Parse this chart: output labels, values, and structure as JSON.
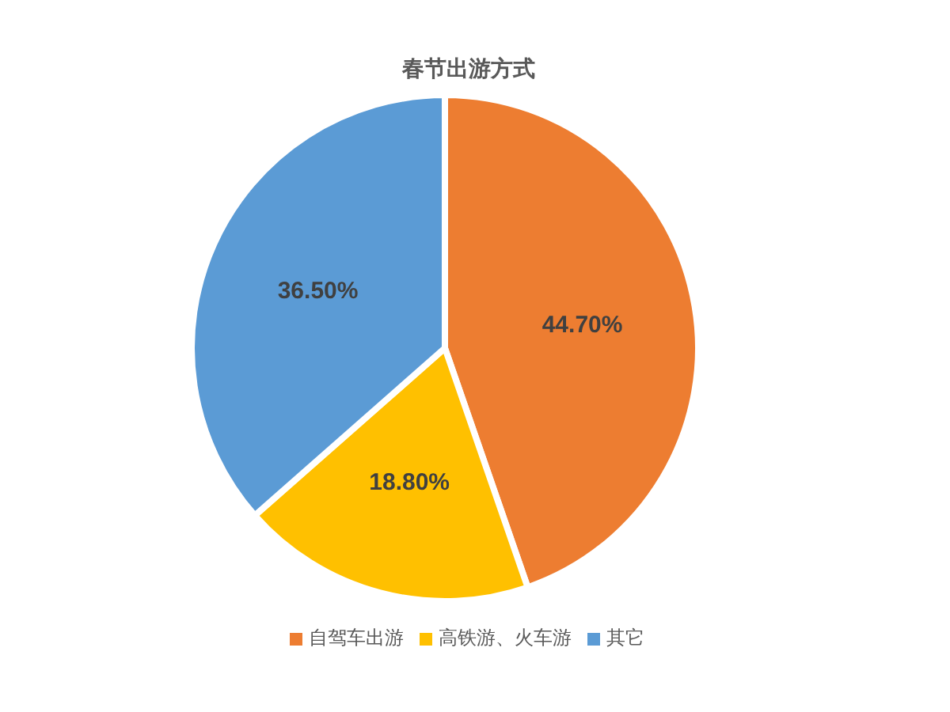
{
  "chart_data": {
    "type": "pie",
    "title": "春节出游方式",
    "categories": [
      "自驾车出游",
      "高铁游、火车游",
      "其它"
    ],
    "values": [
      44.7,
      18.8,
      36.5
    ],
    "colors": [
      "#ed7d31",
      "#ffc000",
      "#5b9bd5"
    ],
    "value_labels": [
      "44.70%",
      "18.80%",
      "36.50%"
    ],
    "legend": "bottom"
  }
}
